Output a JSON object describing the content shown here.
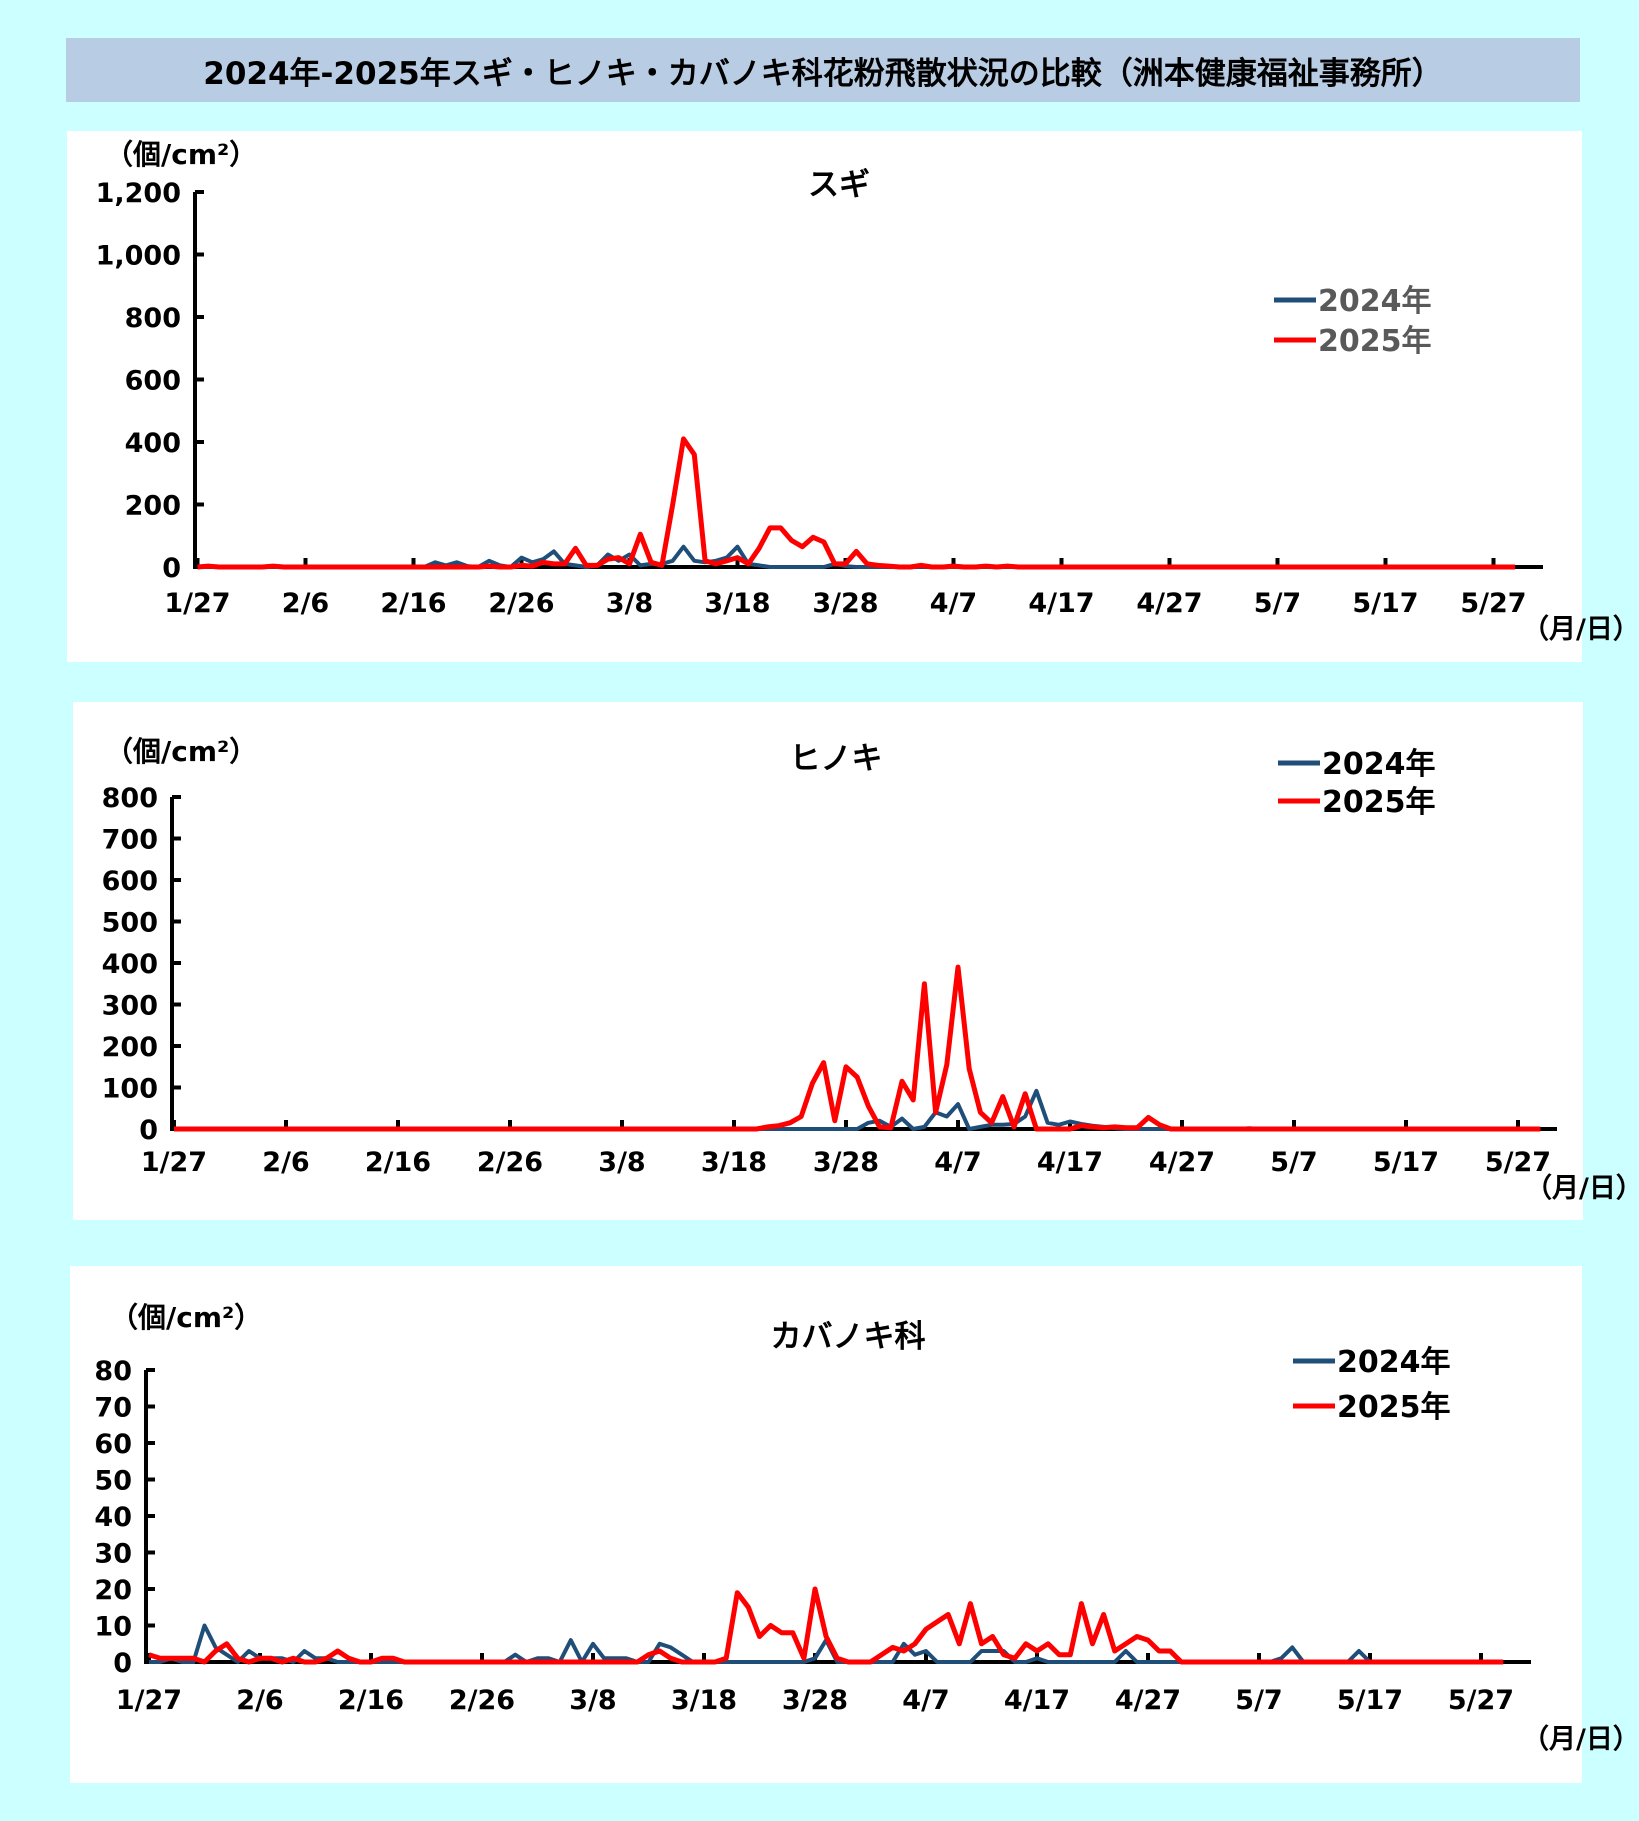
{
  "title": "2024年-2025年スギ・ヒノキ・カバノキ科花粉飛散状況の比較（洲本健康福祉事務所）",
  "colors": {
    "series_2024": "#1f4e79",
    "series_2025": "#ff0000",
    "title_bg": "#b8cce4",
    "page_bg": "#ccffff"
  },
  "chart_data": [
    {
      "type": "line",
      "title": "スギ",
      "ylabel": "（個/cm²）",
      "xlabel": "（月/日）",
      "ylim": [
        0,
        1200
      ],
      "yticks": [
        "0",
        "200",
        "400",
        "600",
        "800",
        "1,000",
        "1,200"
      ],
      "ytick_values": [
        0,
        200,
        400,
        600,
        800,
        1000,
        1200
      ],
      "x_unit": "days since 1/27",
      "x_range": [
        0,
        122
      ],
      "xtick_labels": [
        "1/27",
        "2/6",
        "2/16",
        "2/26",
        "3/8",
        "3/18",
        "3/28",
        "4/7",
        "4/17",
        "4/27",
        "5/7",
        "5/17",
        "5/27"
      ],
      "legend_position": "top-right",
      "series": [
        {
          "name": "2024年",
          "default": 0,
          "values_by_day": {
            "22": 15,
            "23": 5,
            "24": 15,
            "25": 3,
            "27": 20,
            "28": 5,
            "30": 30,
            "31": 15,
            "32": 25,
            "33": 50,
            "34": 10,
            "35": 5,
            "37": 5,
            "38": 40,
            "39": 20,
            "40": 40,
            "41": 5,
            "42": 10,
            "43": 10,
            "44": 20,
            "45": 65,
            "46": 20,
            "47": 15,
            "48": 20,
            "49": 30,
            "50": 65,
            "51": 10,
            "52": 5,
            "59": 10,
            "60": 3
          }
        },
        {
          "name": "2025年",
          "default": 0,
          "values_by_day": {
            "1": 3,
            "7": 3,
            "27": 3,
            "30": 5,
            "31": 3,
            "32": 15,
            "33": 10,
            "34": 10,
            "35": 60,
            "36": 5,
            "37": 5,
            "38": 25,
            "39": 30,
            "40": 10,
            "41": 105,
            "42": 15,
            "43": 5,
            "44": 200,
            "45": 410,
            "46": 360,
            "47": 20,
            "48": 10,
            "49": 20,
            "50": 30,
            "51": 10,
            "52": 60,
            "53": 125,
            "54": 125,
            "55": 85,
            "56": 65,
            "57": 95,
            "58": 80,
            "59": 10,
            "60": 10,
            "61": 50,
            "62": 10,
            "63": 5,
            "64": 3,
            "67": 5,
            "70": 3,
            "73": 3,
            "75": 3
          }
        }
      ]
    },
    {
      "type": "line",
      "title": "ヒノキ",
      "ylabel": "（個/cm²）",
      "xlabel": "（月/日）",
      "ylim": [
        0,
        800
      ],
      "yticks": [
        "0",
        "100",
        "200",
        "300",
        "400",
        "500",
        "600",
        "700",
        "800"
      ],
      "ytick_values": [
        0,
        100,
        200,
        300,
        400,
        500,
        600,
        700,
        800
      ],
      "x_unit": "days since 1/27",
      "x_range": [
        0,
        122
      ],
      "xtick_labels": [
        "1/27",
        "2/6",
        "2/16",
        "2/26",
        "3/8",
        "3/18",
        "3/28",
        "4/7",
        "4/17",
        "4/27",
        "5/7",
        "5/17",
        "5/27"
      ],
      "legend_position": "top-right",
      "series": [
        {
          "name": "2024年",
          "default": 0,
          "values_by_day": {
            "62": 15,
            "63": 20,
            "64": 5,
            "65": 25,
            "66": 0,
            "67": 5,
            "68": 40,
            "69": 30,
            "70": 60,
            "71": 0,
            "72": 5,
            "73": 10,
            "74": 10,
            "75": 12,
            "76": 30,
            "77": 92,
            "78": 15,
            "79": 10,
            "80": 18,
            "81": 12,
            "82": 8,
            "83": 5,
            "84": 2,
            "96": 2
          }
        },
        {
          "name": "2025年",
          "default": 0,
          "values_by_day": {
            "53": 5,
            "54": 8,
            "55": 15,
            "56": 30,
            "57": 110,
            "58": 160,
            "59": 20,
            "60": 150,
            "61": 125,
            "62": 55,
            "63": 5,
            "64": 3,
            "65": 115,
            "66": 70,
            "67": 350,
            "68": 40,
            "69": 155,
            "70": 390,
            "71": 145,
            "72": 40,
            "73": 15,
            "74": 78,
            "75": 5,
            "76": 85,
            "81": 8,
            "82": 5,
            "83": 3,
            "84": 5,
            "85": 3,
            "86": 3,
            "87": 28,
            "88": 10
          }
        }
      ]
    },
    {
      "type": "line",
      "title": "カバノキ科",
      "ylabel": "（個/cm²）",
      "xlabel": "（月/日）",
      "ylim": [
        0,
        80
      ],
      "yticks": [
        "0",
        "10",
        "20",
        "30",
        "40",
        "50",
        "60",
        "70",
        "80"
      ],
      "ytick_values": [
        0,
        10,
        20,
        30,
        40,
        50,
        60,
        70,
        80
      ],
      "x_unit": "days since 1/27",
      "x_range": [
        0,
        122
      ],
      "xtick_labels": [
        "1/27",
        "2/6",
        "2/16",
        "2/26",
        "3/8",
        "3/18",
        "3/28",
        "4/7",
        "4/17",
        "4/27",
        "5/7",
        "5/17",
        "5/27"
      ],
      "legend_position": "top-right",
      "series": [
        {
          "name": "2024年",
          "default": 0,
          "values_by_day": {
            "2": 1,
            "5": 10,
            "6": 4,
            "7": 2,
            "9": 3,
            "10": 1,
            "11": 1,
            "12": 1,
            "14": 3,
            "15": 1,
            "16": 1,
            "33": 2,
            "35": 1,
            "36": 1,
            "38": 6,
            "40": 5,
            "41": 1,
            "42": 1,
            "43": 1,
            "46": 5,
            "47": 4,
            "48": 2,
            "60": 1,
            "61": 6,
            "68": 5,
            "69": 2,
            "70": 3,
            "75": 3,
            "76": 3,
            "77": 3,
            "80": 1,
            "88": 3,
            "102": 1,
            "103": 4,
            "109": 3
          }
        },
        {
          "name": "2025年",
          "default": 0,
          "values_by_day": {
            "0": 2,
            "1": 1,
            "2": 1,
            "3": 1,
            "4": 1,
            "6": 3,
            "7": 5,
            "8": 1,
            "10": 1,
            "11": 1,
            "13": 1,
            "16": 1,
            "17": 3,
            "18": 1,
            "21": 1,
            "22": 1,
            "45": 2,
            "46": 3,
            "47": 1,
            "52": 1,
            "53": 19,
            "54": 15,
            "55": 7,
            "56": 10,
            "57": 8,
            "58": 8,
            "59": 1,
            "60": 20,
            "61": 7,
            "62": 1,
            "66": 2,
            "67": 4,
            "68": 3,
            "69": 5,
            "70": 9,
            "71": 11,
            "72": 13,
            "73": 5,
            "74": 16,
            "75": 5,
            "76": 7,
            "77": 2,
            "78": 1,
            "79": 5,
            "80": 3,
            "81": 5,
            "82": 2,
            "83": 2,
            "84": 16,
            "85": 5,
            "86": 13,
            "87": 3,
            "88": 5,
            "89": 7,
            "90": 6,
            "91": 3,
            "92": 3
          }
        }
      ]
    }
  ]
}
